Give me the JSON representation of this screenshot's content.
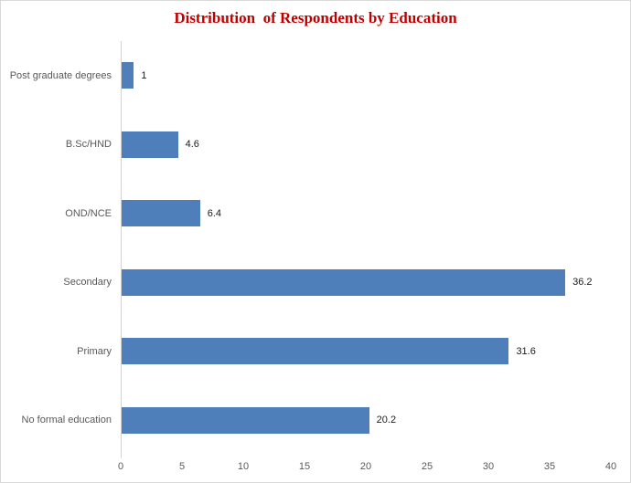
{
  "title": "Distribution  of Respondents by Education",
  "colors": {
    "title": "#c00000",
    "bar": "#4e7fbb",
    "axis_line": "#d3d3d3",
    "axis_label": "#595959",
    "value_label": "#1a1a1a",
    "border": "#d9d9d9",
    "background": "#ffffff"
  },
  "chart_data": {
    "type": "bar",
    "orientation": "horizontal",
    "title": "Distribution  of Respondents by Education",
    "categories": [
      "Post graduate degrees",
      "B.Sc/HND",
      "OND/NCE",
      "Secondary",
      "Primary",
      "No formal education"
    ],
    "values": [
      1,
      4.6,
      6.4,
      36.2,
      31.6,
      20.2
    ],
    "value_labels": [
      "1",
      "4.6",
      "6.4",
      "36.2",
      "31.6",
      "20.2"
    ],
    "xlabel": "",
    "ylabel": "",
    "xlim": [
      0,
      40
    ],
    "xticks": [
      0,
      5,
      10,
      15,
      20,
      25,
      30,
      35,
      40
    ],
    "grid": false,
    "legend": false,
    "data_labels": true
  }
}
